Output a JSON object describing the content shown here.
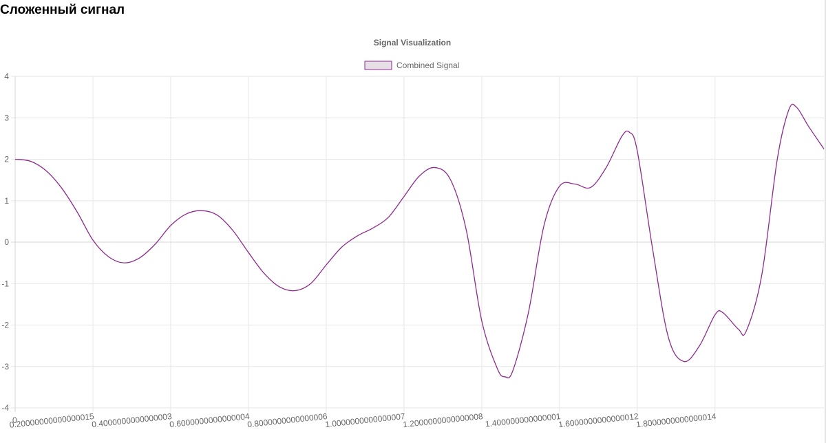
{
  "page": {
    "title": "Сложенный сигнал"
  },
  "chart_data": {
    "type": "line",
    "title": "Signal Visualization",
    "legend": {
      "label": "Combined Signal",
      "position": "top"
    },
    "series": [
      {
        "name": "Combined Signal",
        "color": "#8e2a8e",
        "fill": "#e6e0e6",
        "points": [
          [
            0.0,
            2.0
          ],
          [
            0.04,
            1.95
          ],
          [
            0.08,
            1.72
          ],
          [
            0.12,
            1.3
          ],
          [
            0.16,
            0.72
          ],
          [
            0.2,
            0.05
          ],
          [
            0.24,
            -0.35
          ],
          [
            0.28,
            -0.5
          ],
          [
            0.32,
            -0.38
          ],
          [
            0.36,
            -0.05
          ],
          [
            0.4,
            0.4
          ],
          [
            0.44,
            0.68
          ],
          [
            0.48,
            0.76
          ],
          [
            0.52,
            0.65
          ],
          [
            0.56,
            0.28
          ],
          [
            0.6,
            -0.25
          ],
          [
            0.64,
            -0.75
          ],
          [
            0.68,
            -1.08
          ],
          [
            0.72,
            -1.17
          ],
          [
            0.76,
            -1.0
          ],
          [
            0.8,
            -0.55
          ],
          [
            0.84,
            -0.12
          ],
          [
            0.88,
            0.15
          ],
          [
            0.92,
            0.34
          ],
          [
            0.96,
            0.6
          ],
          [
            1.0,
            1.1
          ],
          [
            1.04,
            1.6
          ],
          [
            1.08,
            1.8
          ],
          [
            1.12,
            1.5
          ],
          [
            1.16,
            0.3
          ],
          [
            1.2,
            -1.9
          ],
          [
            1.24,
            -3.05
          ],
          [
            1.26,
            -3.25
          ],
          [
            1.28,
            -3.1
          ],
          [
            1.32,
            -1.7
          ],
          [
            1.36,
            0.4
          ],
          [
            1.4,
            1.35
          ],
          [
            1.44,
            1.4
          ],
          [
            1.48,
            1.32
          ],
          [
            1.52,
            1.8
          ],
          [
            1.56,
            2.55
          ],
          [
            1.58,
            2.65
          ],
          [
            1.6,
            2.2
          ],
          [
            1.64,
            -0.2
          ],
          [
            1.68,
            -2.3
          ],
          [
            1.72,
            -2.88
          ],
          [
            1.76,
            -2.5
          ],
          [
            1.8,
            -1.75
          ],
          [
            1.82,
            -1.7
          ],
          [
            1.86,
            -2.1
          ],
          [
            1.88,
            -2.15
          ],
          [
            1.92,
            -0.8
          ],
          [
            1.96,
            2.0
          ],
          [
            1.99,
            3.2
          ],
          [
            2.01,
            3.25
          ],
          [
            2.04,
            2.8
          ],
          [
            2.08,
            2.25
          ]
        ]
      }
    ],
    "x_ticks": [
      "0",
      "0.20000000000000015",
      "0.4000000000000003",
      "0.6000000000000004",
      "0.8000000000000006",
      "1.0000000000000007",
      "1.2000000000000008",
      "1.400000000000001",
      "1.6000000000000012",
      "1.8000000000000014"
    ],
    "x_tick_values": [
      0,
      0.2,
      0.4,
      0.6,
      0.8,
      1.0,
      1.2,
      1.4,
      1.6,
      1.8
    ],
    "xlim": [
      0,
      2.08
    ],
    "y_ticks": [
      "4",
      "3",
      "2",
      "1",
      "0",
      "-1",
      "-2",
      "-3",
      "-4"
    ],
    "ylim": [
      -4,
      4
    ],
    "grid": true
  }
}
